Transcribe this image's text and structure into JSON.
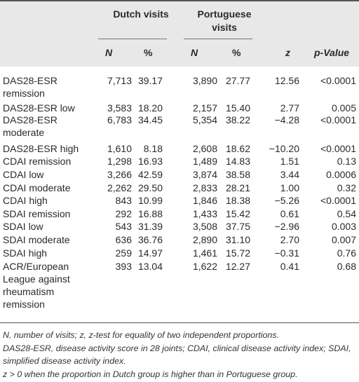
{
  "groups": {
    "dutch": "Dutch visits",
    "portuguese": "Portuguese visits"
  },
  "columns": {
    "n": "N",
    "pct": "%",
    "z": "z",
    "p": "p-Value"
  },
  "rows": [
    {
      "label": "DAS28-ESR remission",
      "dn": "7,713",
      "dp": "39.17",
      "pn": "3,890",
      "pp": "27.77",
      "z": "12.56",
      "p": "<0.0001"
    },
    {
      "label": "DAS28-ESR low",
      "dn": "3,583",
      "dp": "18.20",
      "pn": "2,157",
      "pp": "15.40",
      "z": "2.77",
      "p": "0.005"
    },
    {
      "label": "DAS28-ESR moderate",
      "dn": "6,783",
      "dp": "34.45",
      "pn": "5,354",
      "pp": "38.22",
      "z": "−4.28",
      "p": "<0.0001"
    },
    {
      "label": "DAS28-ESR high",
      "dn": "1,610",
      "dp": "8.18",
      "pn": "2,608",
      "pp": "18.62",
      "z": "−10.20",
      "p": "<0.0001"
    },
    {
      "label": "CDAI remission",
      "dn": "1,298",
      "dp": "16.93",
      "pn": "1,489",
      "pp": "14.83",
      "z": "1.51",
      "p": "0.13"
    },
    {
      "label": "CDAI low",
      "dn": "3,266",
      "dp": "42.59",
      "pn": "3,874",
      "pp": "38.58",
      "z": "3.44",
      "p": "0.0006"
    },
    {
      "label": "CDAI moderate",
      "dn": "2,262",
      "dp": "29.50",
      "pn": "2,833",
      "pp": "28.21",
      "z": "1.00",
      "p": "0.32"
    },
    {
      "label": "CDAI high",
      "dn": "843",
      "dp": "10.99",
      "pn": "1,846",
      "pp": "18.38",
      "z": "−5.26",
      "p": "<0.0001"
    },
    {
      "label": "SDAI remission",
      "dn": "292",
      "dp": "16.88",
      "pn": "1,433",
      "pp": "15.42",
      "z": "0.61",
      "p": "0.54"
    },
    {
      "label": "SDAI low",
      "dn": "543",
      "dp": "31.39",
      "pn": "3,508",
      "pp": "37.75",
      "z": "−2.96",
      "p": "0.003"
    },
    {
      "label": "SDAI moderate",
      "dn": "636",
      "dp": "36.76",
      "pn": "2,890",
      "pp": "31.10",
      "z": "2.70",
      "p": "0.007"
    },
    {
      "label": "SDAI high",
      "dn": "259",
      "dp": "14.97",
      "pn": "1,461",
      "pp": "15.72",
      "z": "−0.31",
      "p": "0.76"
    },
    {
      "label": "ACR/European League against rheumatism remission",
      "dn": "393",
      "dp": "13.04",
      "pn": "1,622",
      "pp": "12.27",
      "z": "0.41",
      "p": "0.68"
    }
  ],
  "footnotes": [
    "N, number of visits; z, z-test for equality of two independent proportions.",
    "DAS28-ESR, disease activity score in 28 joints; CDAI, clinical disease activity index; SDAI, simplified disease activity index.",
    "z > 0 when the proportion in Dutch group is higher than in Portuguese group."
  ]
}
